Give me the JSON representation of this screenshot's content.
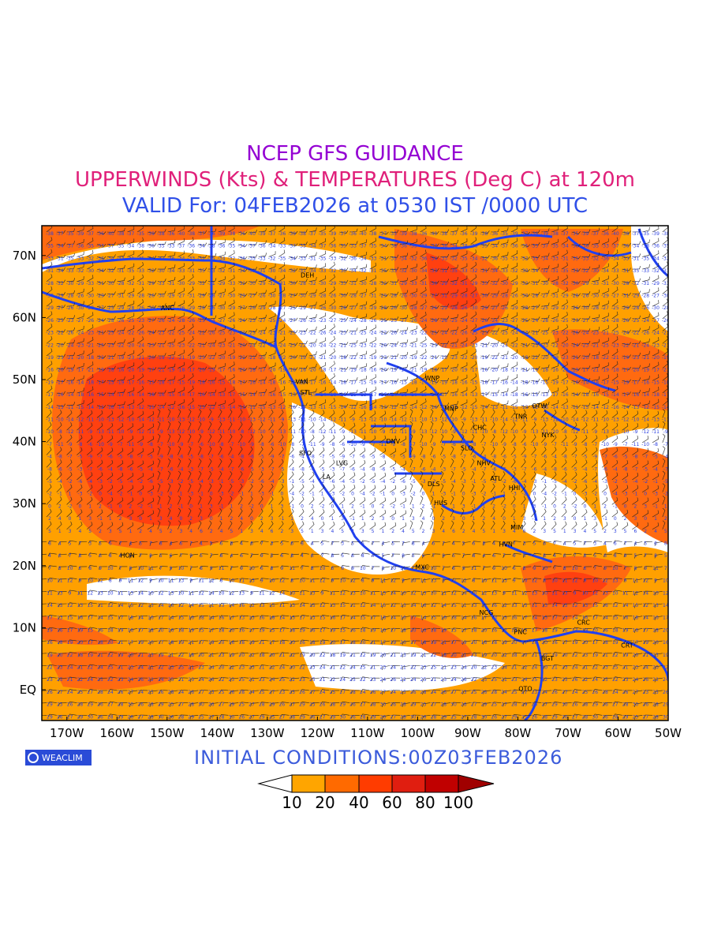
{
  "titles": {
    "line1": "NCEP GFS GUIDANCE",
    "line2": "UPPERWINDS (Kts) & TEMPERATURES (Deg C) at 120m",
    "line3": "VALID For: 04FEB2026 at 0530 IST /0000 UTC"
  },
  "initial_conditions": "INITIAL CONDITIONS:00Z03FEB2026",
  "logo_text": "WEACLIM",
  "axes": {
    "lat_labels": [
      "70N",
      "60N",
      "50N",
      "40N",
      "30N",
      "20N",
      "10N",
      "EQ"
    ],
    "lon_labels": [
      "170W",
      "160W",
      "150W",
      "140W",
      "130W",
      "120W",
      "110W",
      "100W",
      "90W",
      "80W",
      "70W",
      "60W",
      "50W"
    ]
  },
  "stations": [
    {
      "name": "ANC",
      "lon": -149.9,
      "lat": 61.2
    },
    {
      "name": "DEH",
      "lon": -122.0,
      "lat": 66.5
    },
    {
      "name": "VAN",
      "lon": -123.1,
      "lat": 49.3
    },
    {
      "name": "STL",
      "lon": -122.3,
      "lat": 47.6
    },
    {
      "name": "SFO",
      "lon": -122.4,
      "lat": 37.8
    },
    {
      "name": "LVG",
      "lon": -115.1,
      "lat": 36.2
    },
    {
      "name": "LA",
      "lon": -118.2,
      "lat": 34.0
    },
    {
      "name": "DNV",
      "lon": -104.9,
      "lat": 39.7
    },
    {
      "name": "WNP",
      "lon": -97.1,
      "lat": 49.9
    },
    {
      "name": "MNP",
      "lon": -93.3,
      "lat": 45.0
    },
    {
      "name": "CHC",
      "lon": -87.6,
      "lat": 41.9
    },
    {
      "name": "SLO",
      "lon": -90.2,
      "lat": 38.6
    },
    {
      "name": "NHV",
      "lon": -86.8,
      "lat": 36.2
    },
    {
      "name": "DLS",
      "lon": -96.8,
      "lat": 32.8
    },
    {
      "name": "HUS",
      "lon": -95.4,
      "lat": 29.8
    },
    {
      "name": "ATL",
      "lon": -84.4,
      "lat": 33.7
    },
    {
      "name": "HHI",
      "lon": -80.7,
      "lat": 32.2
    },
    {
      "name": "TNR",
      "lon": -79.4,
      "lat": 43.7
    },
    {
      "name": "OTW",
      "lon": -75.7,
      "lat": 45.4
    },
    {
      "name": "NYK",
      "lon": -74.0,
      "lat": 40.7
    },
    {
      "name": "MIM",
      "lon": -80.2,
      "lat": 25.8
    },
    {
      "name": "HVN",
      "lon": -82.4,
      "lat": 23.1
    },
    {
      "name": "HON",
      "lon": -157.9,
      "lat": 21.3
    },
    {
      "name": "MXC",
      "lon": -99.1,
      "lat": 19.4
    },
    {
      "name": "NCG",
      "lon": -86.3,
      "lat": 12.1
    },
    {
      "name": "PNC",
      "lon": -79.5,
      "lat": 9.0
    },
    {
      "name": "CRC",
      "lon": -66.9,
      "lat": 10.5
    },
    {
      "name": "BGT",
      "lon": -74.1,
      "lat": 4.7
    },
    {
      "name": "QTO",
      "lon": -78.5,
      "lat": -0.2
    },
    {
      "name": "CRT",
      "lon": -58.2,
      "lat": 6.8
    }
  ],
  "legend": {
    "labels": [
      "10",
      "20",
      "40",
      "60",
      "80",
      "100"
    ],
    "colors": [
      "#ffffff",
      "#ffa500",
      "#ff6a00",
      "#ff3c00",
      "#e01e10",
      "#c00000",
      "#a00000"
    ]
  },
  "colors": {
    "coast": "#2040f0",
    "orange": "#ffa000",
    "dark_orange": "#ff6a10",
    "red": "#ff4010"
  }
}
